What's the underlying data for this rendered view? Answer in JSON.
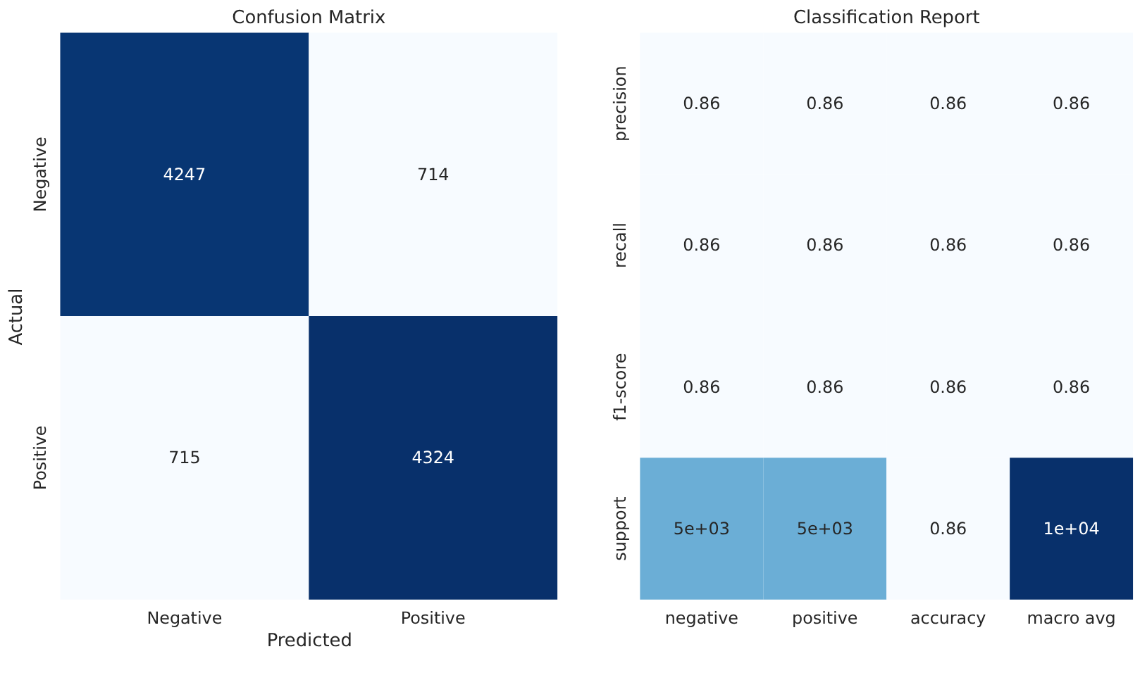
{
  "chart_data": [
    {
      "type": "heatmap",
      "title": "Confusion Matrix",
      "xlabel": "Predicted",
      "ylabel": "Actual",
      "categories": [
        "Negative",
        "Positive"
      ],
      "y_categories": [
        "Negative",
        "Positive"
      ],
      "cells": [
        [
          4247,
          714
        ],
        [
          715,
          4324
        ]
      ],
      "data_labels": true,
      "legend": false
    },
    {
      "type": "heatmap",
      "title": "Classification Report",
      "categories": [
        "negative",
        "positive",
        "accuracy",
        "macro avg"
      ],
      "y_categories": [
        "precision",
        "recall",
        "f1-score",
        "support"
      ],
      "cells": [
        [
          0.86,
          0.86,
          0.86,
          0.86
        ],
        [
          0.86,
          0.86,
          0.86,
          0.86
        ],
        [
          0.86,
          0.86,
          0.86,
          0.86
        ],
        [
          5000,
          5000,
          0.86,
          10000
        ]
      ],
      "cell_labels": [
        [
          "0.86",
          "0.86",
          "0.86",
          "0.86"
        ],
        [
          "0.86",
          "0.86",
          "0.86",
          "0.86"
        ],
        [
          "0.86",
          "0.86",
          "0.86",
          "0.86"
        ],
        [
          "5e+03",
          "5e+03",
          "0.86",
          "1e+04"
        ]
      ],
      "legend": false
    }
  ]
}
